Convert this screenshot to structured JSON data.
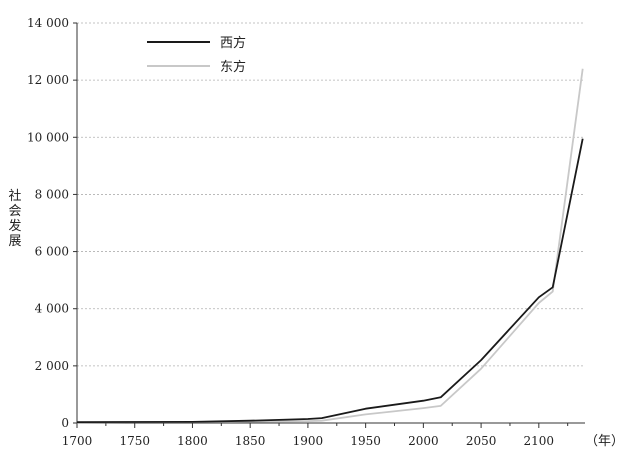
{
  "chart_data": {
    "type": "line",
    "ylabel": "社会发展",
    "xunit": "（年）",
    "xlim": [
      1700,
      2140
    ],
    "ylim": [
      0,
      14000
    ],
    "x_ticks": [
      1700,
      1750,
      1800,
      1850,
      1900,
      1950,
      2000,
      2050,
      2100
    ],
    "x_tick_labels": [
      "1700",
      "1750",
      "1800",
      "1850",
      "1900",
      "1950",
      "2000",
      "2050",
      "2100"
    ],
    "y_ticks": [
      0,
      2000,
      4000,
      6000,
      8000,
      10000,
      12000,
      14000
    ],
    "y_tick_labels": [
      "0",
      "2 000",
      "4 000",
      "6 000",
      "8 000",
      "10 000",
      "12 000",
      "14 000"
    ],
    "grid": "horizontal-dotted",
    "legend_position": "top-left",
    "series": [
      {
        "name": "西方",
        "color": "#1a1a1a",
        "points": [
          [
            1700,
            30
          ],
          [
            1750,
            35
          ],
          [
            1800,
            40
          ],
          [
            1850,
            80
          ],
          [
            1875,
            110
          ],
          [
            1900,
            140
          ],
          [
            1912,
            170
          ],
          [
            1950,
            500
          ],
          [
            2000,
            780
          ],
          [
            2015,
            900
          ],
          [
            2050,
            2200
          ],
          [
            2100,
            4400
          ],
          [
            2112,
            4750
          ],
          [
            2138,
            9950
          ]
        ]
      },
      {
        "name": "东方",
        "color": "#c8c8c8",
        "points": [
          [
            1700,
            25
          ],
          [
            1750,
            30
          ],
          [
            1800,
            35
          ],
          [
            1850,
            50
          ],
          [
            1900,
            65
          ],
          [
            1912,
            80
          ],
          [
            1950,
            300
          ],
          [
            2000,
            520
          ],
          [
            2015,
            600
          ],
          [
            2050,
            1900
          ],
          [
            2100,
            4200
          ],
          [
            2112,
            4600
          ],
          [
            2138,
            12400
          ]
        ]
      }
    ]
  }
}
